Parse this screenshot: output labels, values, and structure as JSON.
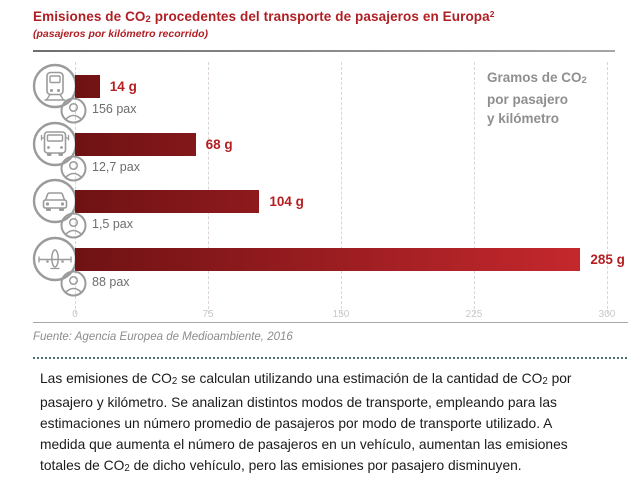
{
  "header": {
    "title_segments": [
      {
        "t": "Emisiones de CO"
      },
      {
        "t": "2",
        "s": "sb"
      },
      {
        "t": " procedentes del transporte de pasajeros en Europa"
      },
      {
        "t": "2",
        "s": "sp"
      }
    ],
    "subtitle": "(pasajeros por kilómetro recorrido)"
  },
  "chart": {
    "legend": {
      "line1_segments": [
        {
          "t": "Gramos de CO"
        },
        {
          "t": "2",
          "s": "sb"
        }
      ],
      "line2": "por pasajero",
      "line3": "y kilómetro"
    },
    "rows": [
      {
        "mode": "tren",
        "icon": "train-icon",
        "value_label": "14 g",
        "pax_label": "156 pax"
      },
      {
        "mode": "autobús",
        "icon": "bus-icon",
        "value_label": "68 g",
        "pax_label": "12,7 pax"
      },
      {
        "mode": "coche",
        "icon": "car-icon",
        "value_label": "104 g",
        "pax_label": "1,5 pax"
      },
      {
        "mode": "avión",
        "icon": "plane-icon",
        "value_label": "285 g",
        "pax_label": "88 pax"
      }
    ],
    "axis_ticks": [
      "0",
      "75",
      "150",
      "225",
      "300"
    ]
  },
  "source": {
    "text": "Fuente: Agencia Europea de Medioambiente, 2016"
  },
  "infobox": {
    "paragraph_segments": [
      {
        "t": "Las emisiones de CO"
      },
      {
        "t": "2",
        "s": "sb"
      },
      {
        "t": " se calculan utilizando una estimación de la cantidad de CO"
      },
      {
        "t": "2",
        "s": "sb"
      },
      {
        "t": " por pasajero y kilómetro. Se analizan distintos modos de transporte, empleando para las estimaciones un número promedio de pasajeros por modo de transporte utilizado. A medida que aumenta el número de pasajeros en un vehículo, aumentan las emisiones totales de CO"
      },
      {
        "t": "2",
        "s": "sb"
      },
      {
        "t": " de dicho vehículo, pero las emisiones por pasajero disminuyen."
      }
    ]
  },
  "chart_data": {
    "type": "bar",
    "orientation": "horizontal",
    "title": "Emisiones de CO2 procedentes del transporte de pasajeros en Europa",
    "subtitle": "(pasajeros por kilómetro recorrido)",
    "legend": "Gramos de CO2 por pasajero y kilómetro",
    "legend_position": "top-right",
    "categories": [
      "tren",
      "autobús",
      "coche",
      "avión"
    ],
    "values": [
      14,
      68,
      104,
      285
    ],
    "value_labels": [
      "14 g",
      "68 g",
      "104 g",
      "285 g"
    ],
    "passengers_avg": [
      156,
      12.7,
      1.5,
      88
    ],
    "passenger_labels": [
      "156 pax",
      "12,7 pax",
      "1,5 pax",
      "88 pax"
    ],
    "xlabel": "",
    "ylabel": "",
    "xlim": [
      0,
      300
    ],
    "x_ticks": [
      0,
      75,
      150,
      225,
      300
    ],
    "grid": "vertical-dashed",
    "source": "Fuente: Agencia Europea de Medioambiente, 2016",
    "colors": {
      "bar_gradient_start": "#6f1214",
      "bar_gradient_end": "#c9292e",
      "value_label": "#b51f22",
      "title": "#b01f24",
      "legend_text": "#8f8f8f",
      "axis_ticks": "#c8c8c8",
      "icon_stroke": "#9b9b9b"
    }
  }
}
